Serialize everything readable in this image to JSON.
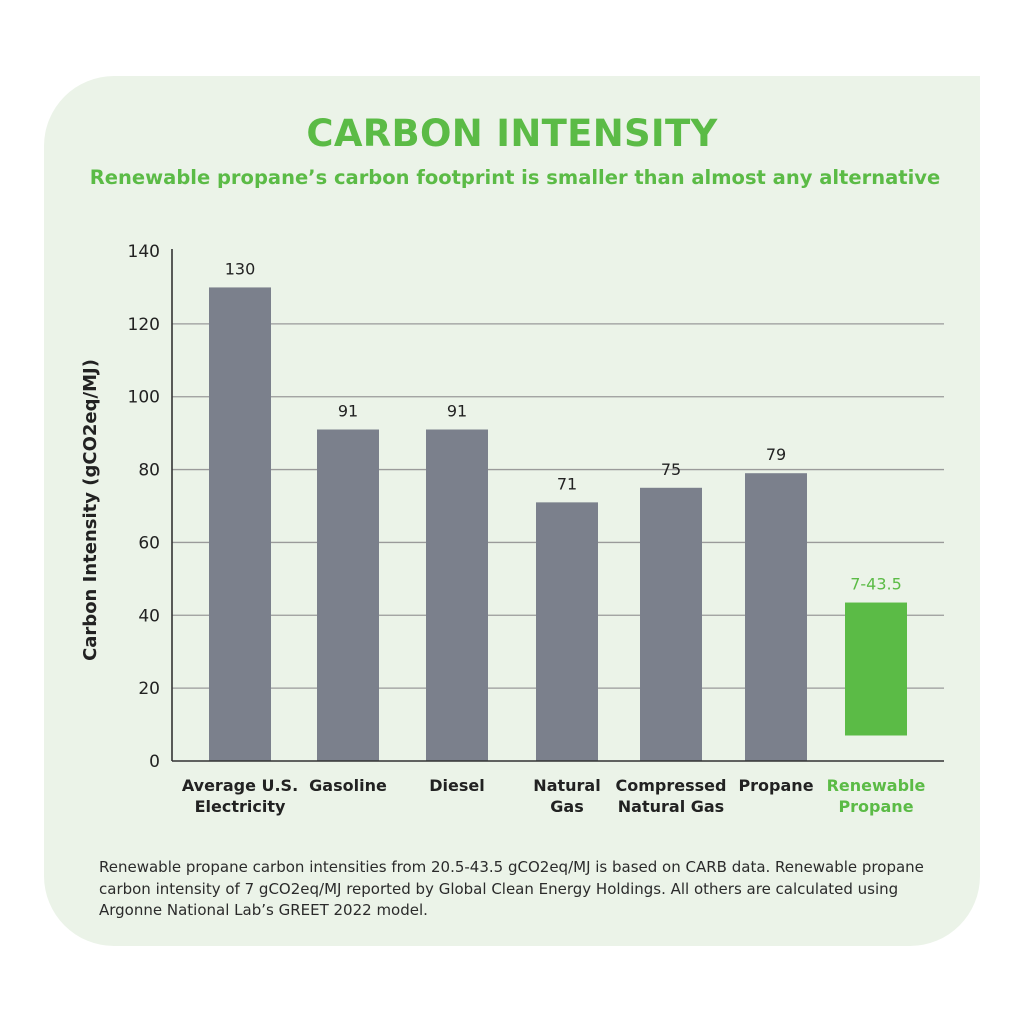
{
  "title": "CARBON INTENSITY",
  "subtitle": "Renewable propane’s carbon footprint is smaller than almost any alternative",
  "footnote": "Renewable propane carbon intensities from 20.5-43.5 gCO2eq/MJ is based on CARB data. Renewable propane carbon intensity of 7 gCO2eq/MJ reported by Global Clean Energy Holdings. All others are calculated using Argonne National Lab’s GREET 2022 model.",
  "chart_data": {
    "type": "bar",
    "title": "CARBON INTENSITY",
    "ylabel": "Carbon Intensity (gCO2eq/MJ)",
    "xlabel": "",
    "ylim": [
      0,
      140
    ],
    "yticks": [
      0,
      20,
      40,
      60,
      80,
      100,
      120,
      140
    ],
    "grid": true,
    "categories": [
      [
        "Average U.S.",
        "Electricity"
      ],
      [
        "Gasoline"
      ],
      [
        "Diesel"
      ],
      [
        "Natural",
        "Gas"
      ],
      [
        "Compressed",
        "Natural Gas"
      ],
      [
        "Propane"
      ],
      [
        "Renewable",
        "Propane"
      ]
    ],
    "bars": [
      {
        "low": 0,
        "high": 130,
        "label": "130",
        "color": "#7b808c"
      },
      {
        "low": 0,
        "high": 91,
        "label": "91",
        "color": "#7b808c"
      },
      {
        "low": 0,
        "high": 91,
        "label": "91",
        "color": "#7b808c"
      },
      {
        "low": 0,
        "high": 71,
        "label": "71",
        "color": "#7b808c"
      },
      {
        "low": 0,
        "high": 75,
        "label": "75",
        "color": "#7b808c"
      },
      {
        "low": 0,
        "high": 79,
        "label": "79",
        "color": "#7b808c"
      },
      {
        "low": 7,
        "high": 43.5,
        "label": "7-43.5",
        "color": "#5bbb46"
      }
    ],
    "colors": {
      "default_bar": "#7b808c",
      "highlight": "#5bbb46",
      "grid": "#9a9a9a",
      "axis": "#333333"
    }
  }
}
